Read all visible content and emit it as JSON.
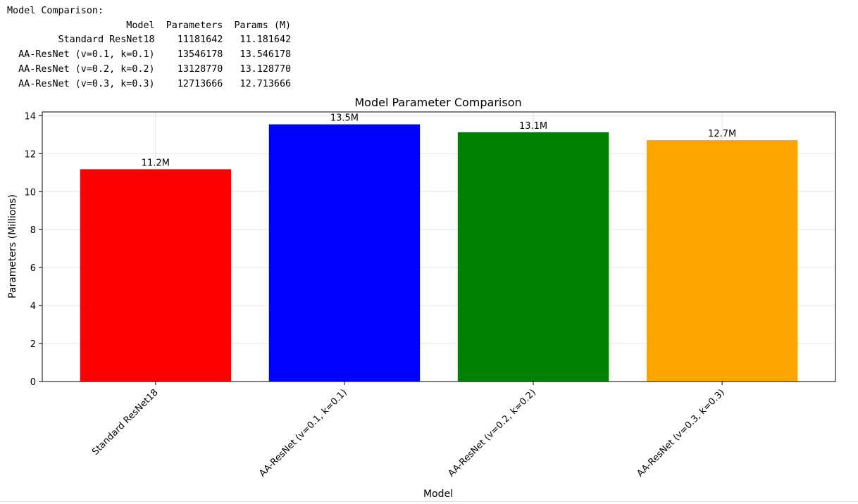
{
  "output": {
    "heading": "Model Comparison:",
    "columns": [
      "Model",
      "Parameters",
      "Params (M)"
    ],
    "rows": [
      [
        "Standard ResNet18",
        "11181642",
        "11.181642"
      ],
      [
        "AA-ResNet (v=0.1, k=0.1)",
        "13546178",
        "13.546178"
      ],
      [
        "AA-ResNet (v=0.2, k=0.2)",
        "13128770",
        "13.128770"
      ],
      [
        "AA-ResNet (v=0.3, k=0.3)",
        "12713666",
        "12.713666"
      ]
    ]
  },
  "chart_data": {
    "type": "bar",
    "title": "Model Parameter Comparison",
    "xlabel": "Model",
    "ylabel": "Parameters (Millions)",
    "categories": [
      "Standard ResNet18",
      "AA-ResNet (v=0.1, k=0.1)",
      "AA-ResNet (v=0.2, k=0.2)",
      "AA-ResNet (v=0.3, k=0.3)"
    ],
    "values": [
      11.181642,
      13.546178,
      13.12877,
      12.713666
    ],
    "bar_labels": [
      "11.2M",
      "13.5M",
      "13.1M",
      "12.7M"
    ],
    "colors": [
      "#ff0000",
      "#0000ff",
      "#008000",
      "#ffa500"
    ],
    "yticks": [
      0,
      2,
      4,
      6,
      8,
      10,
      12,
      14
    ],
    "ylim": [
      0,
      14.2
    ],
    "grid": true
  }
}
